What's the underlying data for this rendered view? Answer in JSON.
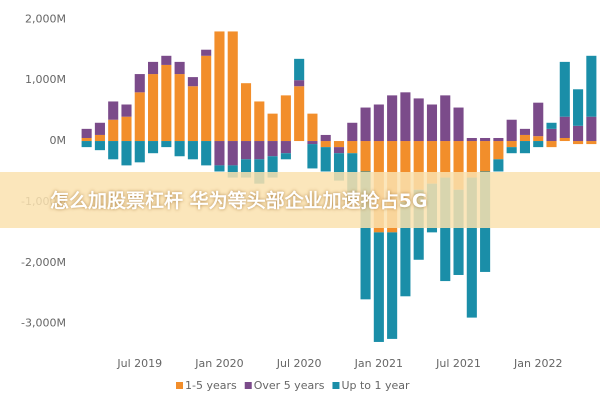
{
  "chart_data": {
    "type": "bar",
    "banner": "怎么加股票杠杆 华为等头部企业加速抢占5G",
    "categories": [
      null,
      null,
      null,
      null,
      "Jul 2019",
      null,
      null,
      null,
      null,
      null,
      "Jan 2020",
      null,
      null,
      null,
      null,
      null,
      "Jul 2020",
      null,
      null,
      null,
      null,
      null,
      "Jan 2021",
      null,
      null,
      null,
      null,
      null,
      "Jul 2021",
      null,
      null,
      null,
      null,
      null,
      "Jan 2022",
      null,
      null,
      null,
      null
    ],
    "series": [
      {
        "name": "1-5 years",
        "color": "#f28e2b",
        "values": [
          50,
          100,
          350,
          400,
          800,
          1100,
          1250,
          1100,
          900,
          1400,
          1800,
          1800,
          950,
          650,
          450,
          750,
          900,
          450,
          -100,
          -100,
          -200,
          -500,
          -1500,
          -1500,
          -1000,
          -800,
          -700,
          -600,
          -800,
          -600,
          -500,
          -300,
          -100,
          100,
          80,
          -100,
          50,
          -50,
          -50
        ]
      },
      {
        "name": "Over 5 years",
        "color": "#7b4b8a",
        "values": [
          150,
          200,
          300,
          200,
          300,
          200,
          150,
          200,
          150,
          100,
          -400,
          -400,
          -300,
          -300,
          -250,
          -200,
          100,
          -50,
          100,
          -100,
          300,
          550,
          600,
          750,
          800,
          700,
          600,
          750,
          550,
          50,
          50,
          50,
          350,
          100,
          550,
          200,
          350,
          250,
          400
        ]
      },
      {
        "name": "Up to 1 year",
        "color": "#1a8ea8",
        "values": [
          -100,
          -150,
          -300,
          -400,
          -350,
          -200,
          -100,
          -250,
          -300,
          -400,
          -100,
          -200,
          -300,
          -400,
          -350,
          -100,
          350,
          -400,
          -400,
          -450,
          -800,
          -2100,
          -1800,
          -1750,
          -1550,
          -1150,
          -800,
          -1700,
          -1400,
          -2300,
          -1650,
          -200,
          -100,
          -200,
          -100,
          100,
          900,
          600,
          1000
        ]
      }
    ],
    "ylim": [
      -3350,
      2300
    ],
    "yticks": [
      {
        "value": 2000,
        "label": "2,000M"
      },
      {
        "value": 1000,
        "label": "1,000M"
      },
      {
        "value": 0,
        "label": "0M"
      },
      {
        "value": -1000,
        "label": "-1,000M"
      },
      {
        "value": -2000,
        "label": "-2,000M"
      },
      {
        "value": -3000,
        "label": "-3,000M"
      }
    ]
  }
}
